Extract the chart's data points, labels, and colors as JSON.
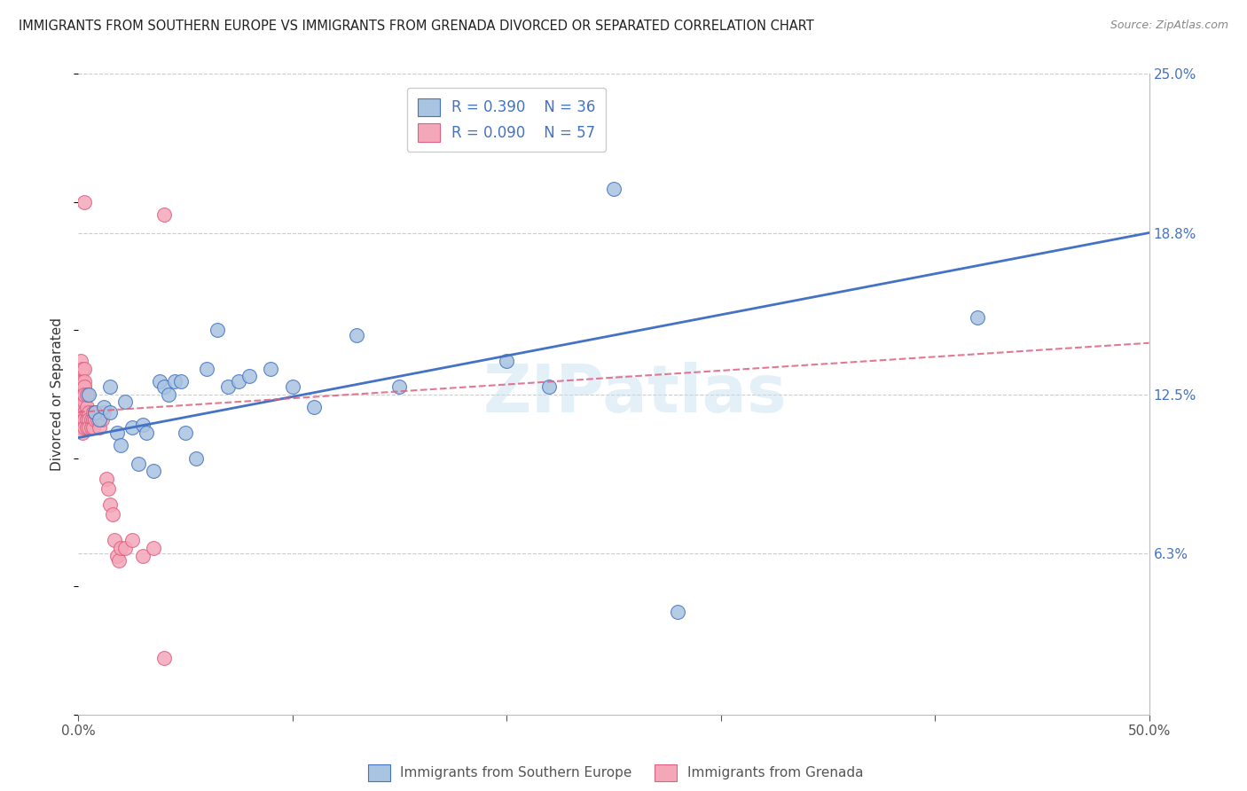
{
  "title": "IMMIGRANTS FROM SOUTHERN EUROPE VS IMMIGRANTS FROM GRENADA DIVORCED OR SEPARATED CORRELATION CHART",
  "source": "Source: ZipAtlas.com",
  "xlabel_blue": "Immigrants from Southern Europe",
  "xlabel_pink": "Immigrants from Grenada",
  "ylabel": "Divorced or Separated",
  "xlim": [
    0.0,
    0.5
  ],
  "ylim": [
    0.0,
    0.25
  ],
  "xtick_positions": [
    0.0,
    0.1,
    0.2,
    0.3,
    0.4,
    0.5
  ],
  "xtick_labels": [
    "0.0%",
    "",
    "",
    "",
    "",
    "50.0%"
  ],
  "yticks_right": [
    0.063,
    0.125,
    0.188,
    0.25
  ],
  "ytick_labels_right": [
    "6.3%",
    "12.5%",
    "18.8%",
    "25.0%"
  ],
  "blue_R": 0.39,
  "blue_N": 36,
  "pink_R": 0.09,
  "pink_N": 57,
  "blue_color": "#a8c4e0",
  "blue_line_color": "#4472c4",
  "pink_color": "#f4a7b9",
  "pink_line_color": "#e06080",
  "watermark": "ZIPatlas",
  "blue_scatter_x": [
    0.005,
    0.008,
    0.01,
    0.012,
    0.015,
    0.015,
    0.018,
    0.02,
    0.022,
    0.025,
    0.028,
    0.03,
    0.032,
    0.035,
    0.038,
    0.04,
    0.042,
    0.045,
    0.048,
    0.05,
    0.055,
    0.06,
    0.065,
    0.07,
    0.075,
    0.08,
    0.09,
    0.1,
    0.11,
    0.13,
    0.15,
    0.2,
    0.22,
    0.25,
    0.42,
    0.28
  ],
  "blue_scatter_y": [
    0.125,
    0.118,
    0.115,
    0.12,
    0.128,
    0.118,
    0.11,
    0.105,
    0.122,
    0.112,
    0.098,
    0.113,
    0.11,
    0.095,
    0.13,
    0.128,
    0.125,
    0.13,
    0.13,
    0.11,
    0.1,
    0.135,
    0.15,
    0.128,
    0.13,
    0.132,
    0.135,
    0.128,
    0.12,
    0.148,
    0.128,
    0.138,
    0.128,
    0.205,
    0.155,
    0.04
  ],
  "pink_scatter_x": [
    0.001,
    0.001,
    0.001,
    0.001,
    0.001,
    0.002,
    0.002,
    0.002,
    0.002,
    0.002,
    0.002,
    0.002,
    0.002,
    0.002,
    0.003,
    0.003,
    0.003,
    0.003,
    0.003,
    0.003,
    0.003,
    0.003,
    0.003,
    0.004,
    0.004,
    0.004,
    0.004,
    0.004,
    0.005,
    0.005,
    0.005,
    0.006,
    0.006,
    0.007,
    0.007,
    0.007,
    0.008,
    0.008,
    0.009,
    0.01,
    0.011,
    0.012,
    0.013,
    0.014,
    0.015,
    0.016,
    0.017,
    0.018,
    0.019,
    0.02,
    0.022,
    0.025,
    0.03,
    0.035,
    0.04,
    0.04,
    0.003
  ],
  "pink_scatter_y": [
    0.138,
    0.13,
    0.125,
    0.118,
    0.112,
    0.135,
    0.128,
    0.122,
    0.118,
    0.13,
    0.125,
    0.12,
    0.115,
    0.11,
    0.135,
    0.128,
    0.122,
    0.118,
    0.115,
    0.112,
    0.13,
    0.128,
    0.125,
    0.118,
    0.115,
    0.112,
    0.12,
    0.125,
    0.118,
    0.115,
    0.112,
    0.115,
    0.112,
    0.118,
    0.115,
    0.112,
    0.115,
    0.118,
    0.115,
    0.112,
    0.115,
    0.118,
    0.092,
    0.088,
    0.082,
    0.078,
    0.068,
    0.062,
    0.06,
    0.065,
    0.065,
    0.068,
    0.062,
    0.065,
    0.195,
    0.022,
    0.2
  ],
  "blue_line_x": [
    0.0,
    0.5
  ],
  "blue_line_y": [
    0.108,
    0.188
  ],
  "pink_line_x": [
    0.0,
    0.5
  ],
  "pink_line_y": [
    0.118,
    0.145
  ]
}
